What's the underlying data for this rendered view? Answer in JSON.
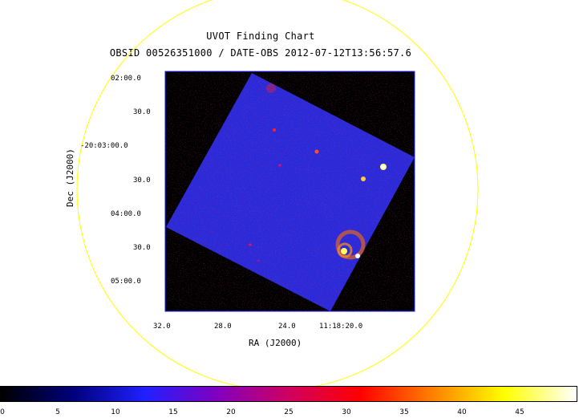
{
  "chart_data": {
    "type": "heatmap",
    "title": "UVOT Finding Chart",
    "subtitle": "OBSID 00526351000 / DATE-OBS 2012-07-12T13:56:57.6",
    "xlabel": "RA (J2000)",
    "ylabel": "Dec (J2000)",
    "x_ticks": [
      "32.0",
      "28.0",
      "24.0",
      "11:18:20.0"
    ],
    "y_ticks": [
      "02:00.0",
      "30.0",
      "-20:03:00.0",
      "30.0",
      "04:00.0",
      "30.0",
      "05:00.0"
    ],
    "colorbar": {
      "min": 0,
      "max": 50,
      "ticks": [
        "0",
        "5",
        "10",
        "15",
        "20",
        "25",
        "30",
        "35",
        "40",
        "45"
      ],
      "colormap": [
        "#000000",
        "#00007a",
        "#2020ff",
        "#8000c0",
        "#d00060",
        "#ff0000",
        "#ff8000",
        "#ffff00",
        "#ffffff"
      ]
    },
    "circle_color": "#ffff00",
    "image_field_color": "#2a2ad8"
  }
}
